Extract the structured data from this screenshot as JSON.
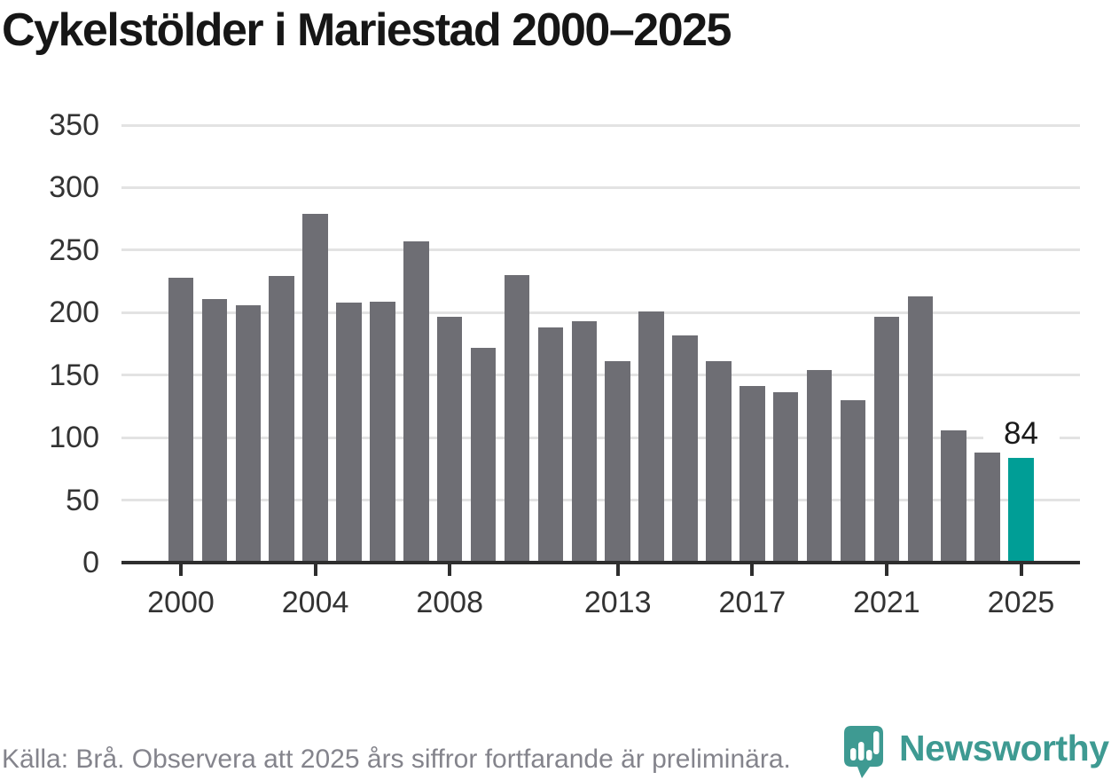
{
  "title": "Cykelstölder i Mariestad 2000–2025",
  "footer": {
    "source_text": "Källa: Brå. Observera att 2025 års siffror fortfarande är preliminära."
  },
  "branding": {
    "logo_text": "Newsworthy",
    "logo_icon": "bar-chart-pin-icon",
    "logo_color": "#3e9a92"
  },
  "chart_data": {
    "type": "bar",
    "title": "Cykelstölder i Mariestad 2000–2025",
    "xlabel": "",
    "ylabel": "",
    "categories": [
      "2000",
      "2001",
      "2002",
      "2003",
      "2004",
      "2005",
      "2006",
      "2007",
      "2008",
      "2009",
      "2010",
      "2011",
      "2012",
      "2013",
      "2014",
      "2015",
      "2016",
      "2017",
      "2018",
      "2019",
      "2020",
      "2021",
      "2022",
      "2023",
      "2024",
      "2025"
    ],
    "values": [
      228,
      211,
      206,
      229,
      279,
      208,
      209,
      257,
      197,
      172,
      230,
      188,
      193,
      161,
      201,
      182,
      161,
      141,
      136,
      154,
      130,
      197,
      213,
      106,
      88,
      84
    ],
    "highlight": {
      "category": "2025",
      "value": 84,
      "label": "84",
      "color": "#009e96"
    },
    "bar_color": "#6e6e74",
    "grid": "horizontal",
    "gridline_color": "#e3e3e3",
    "axis_color": "#2e2e2e",
    "y_ticks": [
      0,
      50,
      100,
      150,
      200,
      250,
      300,
      350
    ],
    "ylim": [
      0,
      350
    ],
    "x_tick_labels": [
      "2000",
      "2004",
      "2008",
      "2013",
      "2017",
      "2021",
      "2025"
    ],
    "legend": "none"
  }
}
